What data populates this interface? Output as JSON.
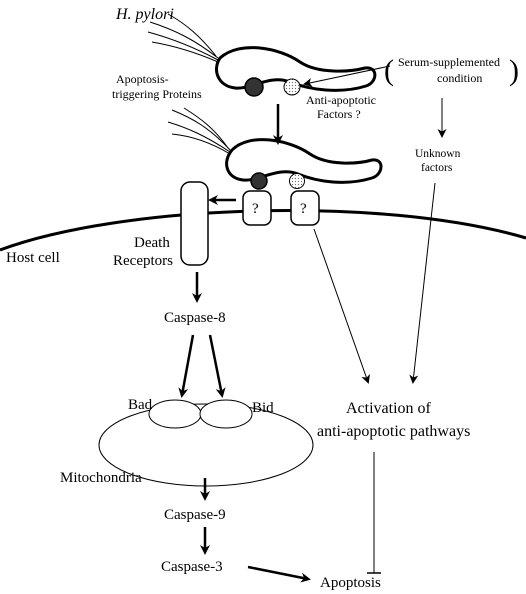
{
  "labels": {
    "h_pylori": "H. pylori",
    "apoptosis_triggering_1": "Apoptosis-",
    "apoptosis_triggering_2": "triggering Proteins",
    "anti_apoptotic_1": "Anti-apoptotic",
    "anti_apoptotic_2": "Factors ?",
    "serum_1": "Serum-supplemented",
    "serum_2": "condition",
    "unknown_1": "Unknown",
    "unknown_2": "factors",
    "host_cell": "Host cell",
    "death_receptors_1": "Death",
    "death_receptors_2": "Receptors",
    "receptor_q_left": "?",
    "receptor_q_right": "?",
    "caspase8": "Caspase-8",
    "bad": "Bad",
    "bid": "Bid",
    "mitochondria": "Mitochondria",
    "caspase9": "Caspase-9",
    "caspase3": "Caspase-3",
    "activation_1": "Activation of",
    "activation_2": "anti-apoptotic pathways",
    "apoptosis": "Apoptosis",
    "serum_paren_open": "(",
    "serum_paren_close": ")"
  },
  "colors": {
    "ink": "#000000",
    "apoptosis_protein": "#333333",
    "anti_apoptotic_protein": "#d9d9d9"
  }
}
